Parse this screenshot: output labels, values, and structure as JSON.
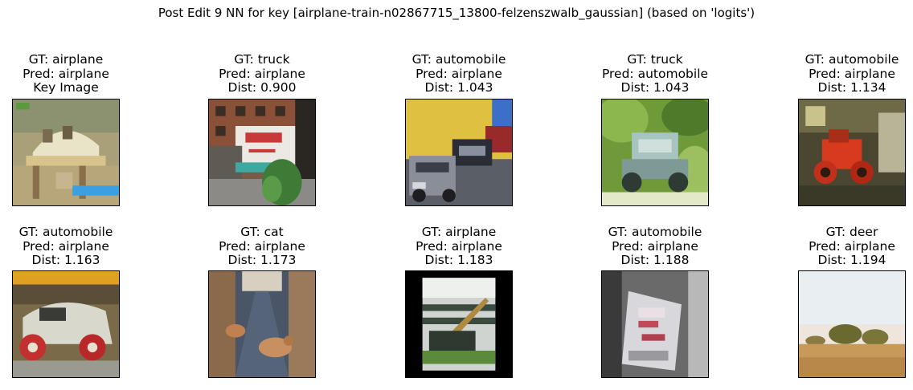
{
  "figure": {
    "title": "Post Edit 9 NN for key [airplane-train-n02867715_13800-felzenszwalb_gaussian] (based on 'logits')"
  },
  "panels": [
    {
      "gt": "GT: airplane",
      "pred": "Pred: airplane",
      "info": "Key Image",
      "scene": "key-house"
    },
    {
      "gt": "GT: truck",
      "pred": "Pred: airplane",
      "info": "Dist: 0.900",
      "scene": "truck-street"
    },
    {
      "gt": "GT: automobile",
      "pred": "Pred: airplane",
      "info": "Dist: 1.043",
      "scene": "cars-yellow-wall"
    },
    {
      "gt": "GT: truck",
      "pred": "Pred: automobile",
      "info": "Dist: 1.043",
      "scene": "vehicle-in-foliage"
    },
    {
      "gt": "GT: automobile",
      "pred": "Pred: airplane",
      "info": "Dist: 1.134",
      "scene": "red-car-garage"
    },
    {
      "gt": "GT: automobile",
      "pred": "Pred: airplane",
      "info": "Dist: 1.163",
      "scene": "vintage-car-red-wheels"
    },
    {
      "gt": "GT: cat",
      "pred": "Pred: airplane",
      "info": "Dist: 1.173",
      "scene": "cats-on-street"
    },
    {
      "gt": "GT: airplane",
      "pred": "Pred: airplane",
      "info": "Dist: 1.183",
      "scene": "framed-photo-black-border"
    },
    {
      "gt": "GT: automobile",
      "pred": "Pred: airplane",
      "info": "Dist: 1.188",
      "scene": "grey-machine-closeup"
    },
    {
      "gt": "GT: deer",
      "pred": "Pred: airplane",
      "info": "Dist: 1.194",
      "scene": "savanna-landscape"
    }
  ]
}
